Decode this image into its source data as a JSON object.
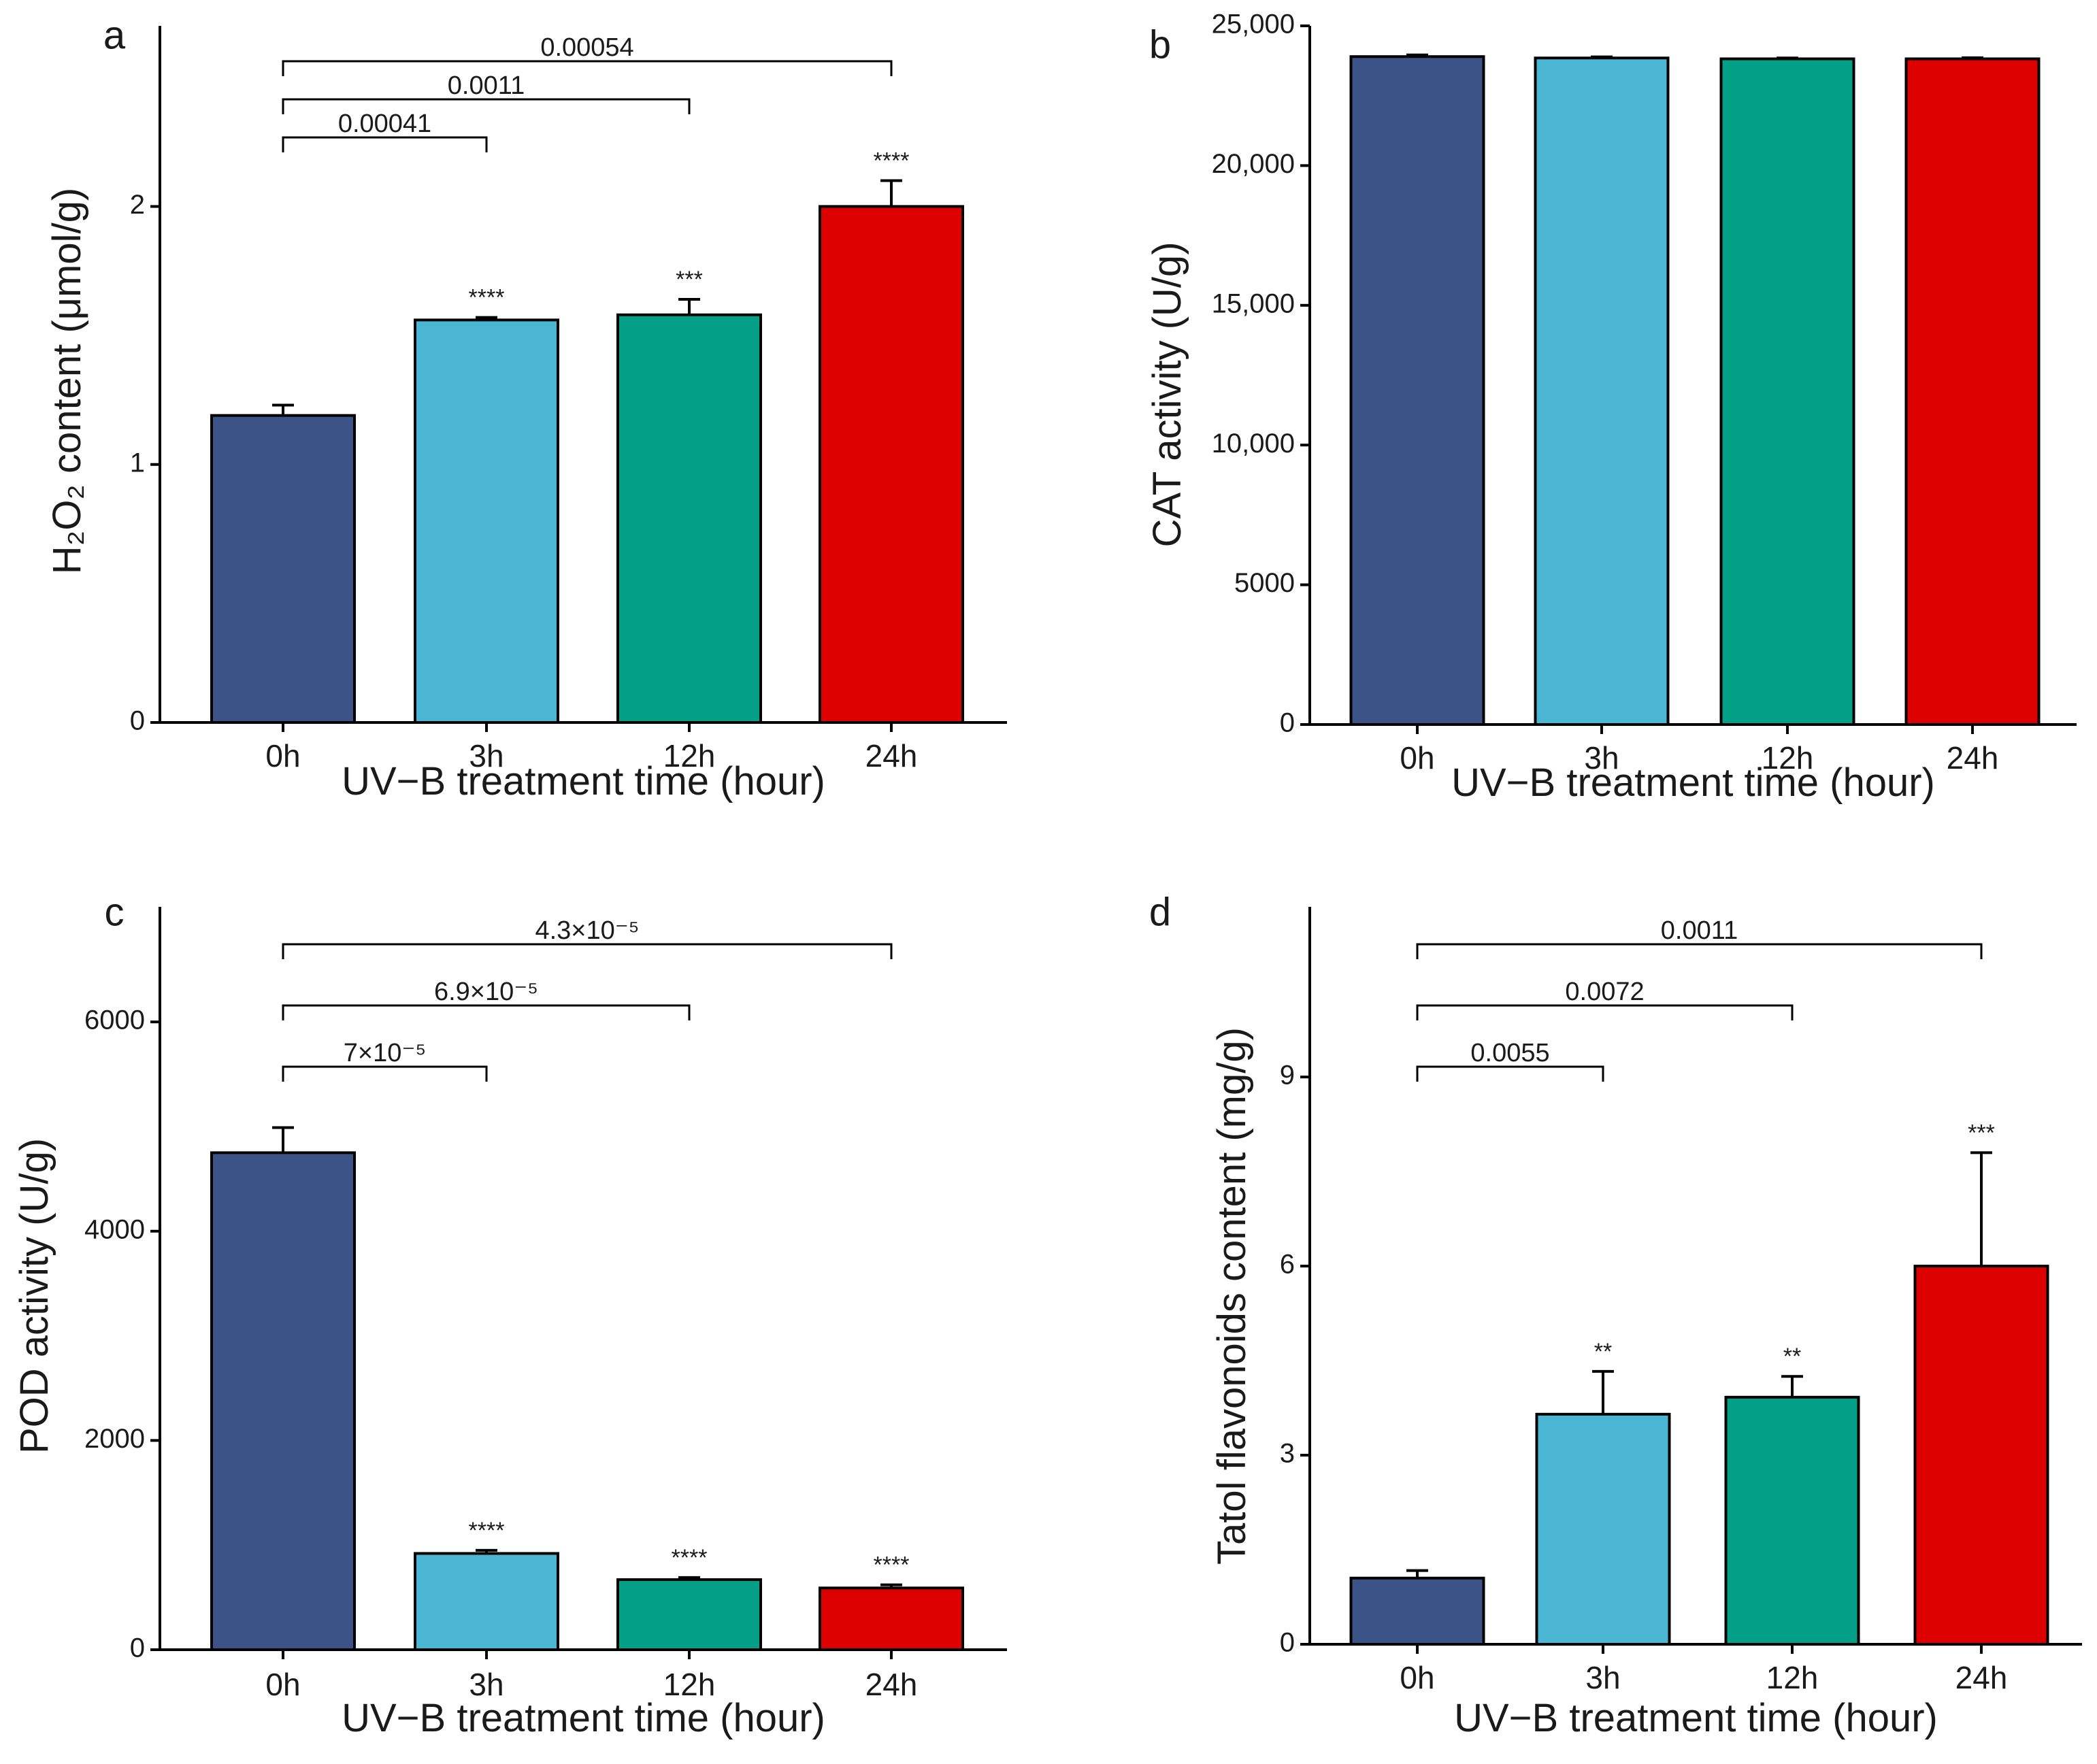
{
  "colors": {
    "bar_0h": "#3b5386",
    "bar_3h": "#4bb6d4",
    "bar_12h": "#03a087",
    "bar_24h": "#dd0000"
  },
  "chart_data": [
    {
      "panel": "a",
      "type": "bar",
      "xlabel": "UV−B treatment time (hour)",
      "ylabel": "H₂O₂ content (μmol/g)",
      "categories": [
        "0h",
        "3h",
        "12h",
        "24h"
      ],
      "values": [
        1.19,
        1.56,
        1.58,
        2.0
      ],
      "errors": [
        0.04,
        0.01,
        0.06,
        0.1
      ],
      "significance": [
        "",
        "****",
        "***",
        "****"
      ],
      "ylim": [
        0,
        2.7
      ],
      "yticks": [
        0,
        1,
        2
      ],
      "ytick_labels": [
        "0",
        "1",
        "2"
      ],
      "comparisons": [
        {
          "from": "0h",
          "to": "3h",
          "p": "0.00041"
        },
        {
          "from": "0h",
          "to": "12h",
          "p": "0.0011"
        },
        {
          "from": "0h",
          "to": "24h",
          "p": "0.00054"
        }
      ]
    },
    {
      "panel": "b",
      "type": "bar",
      "xlabel": "UV−B treatment time (hour)",
      "ylabel": "CAT activity (U/g)",
      "categories": [
        "0h",
        "3h",
        "12h",
        "24h"
      ],
      "values": [
        23900,
        23850,
        23820,
        23820
      ],
      "errors": [
        60,
        40,
        30,
        40
      ],
      "significance": [
        "",
        "",
        "",
        ""
      ],
      "ylim": [
        0,
        25000
      ],
      "yticks": [
        0,
        5000,
        10000,
        15000,
        20000,
        25000
      ],
      "ytick_labels": [
        "0",
        "5000",
        "10,000",
        "15,000",
        "20,000",
        "25,000"
      ],
      "comparisons": []
    },
    {
      "panel": "c",
      "type": "bar",
      "xlabel": "UV−B treatment time (hour)",
      "ylabel": "POD activity (U/g)",
      "categories": [
        "0h",
        "3h",
        "12h",
        "24h"
      ],
      "values": [
        4750,
        920,
        670,
        590
      ],
      "errors": [
        240,
        30,
        20,
        30
      ],
      "significance": [
        "",
        "****",
        "****",
        "****"
      ],
      "ylim": [
        0,
        7100
      ],
      "yticks": [
        0,
        2000,
        4000,
        6000
      ],
      "ytick_labels": [
        "0",
        "2000",
        "4000",
        "6000"
      ],
      "comparisons": [
        {
          "from": "0h",
          "to": "3h",
          "p": "7×10⁻⁵"
        },
        {
          "from": "0h",
          "to": "12h",
          "p": "6.9×10⁻⁵"
        },
        {
          "from": "0h",
          "to": "24h",
          "p": "4.3×10⁻⁵"
        }
      ]
    },
    {
      "panel": "d",
      "type": "bar",
      "xlabel": "UV−B treatment time (hour)",
      "ylabel": "Tatol flavonoids content (mg/g)",
      "categories": [
        "0h",
        "3h",
        "12h",
        "24h"
      ],
      "values": [
        1.05,
        3.65,
        3.92,
        6.0
      ],
      "errors": [
        0.12,
        0.68,
        0.33,
        1.8
      ],
      "significance": [
        "",
        "**",
        "**",
        "***"
      ],
      "ylim": [
        0,
        11.7
      ],
      "yticks": [
        0,
        3,
        6,
        9
      ],
      "ytick_labels": [
        "0",
        "3",
        "6",
        "9"
      ],
      "comparisons": [
        {
          "from": "0h",
          "to": "3h",
          "p": "0.0055"
        },
        {
          "from": "0h",
          "to": "12h",
          "p": "0.0072"
        },
        {
          "from": "0h",
          "to": "24h",
          "p": "0.0011"
        }
      ]
    }
  ]
}
